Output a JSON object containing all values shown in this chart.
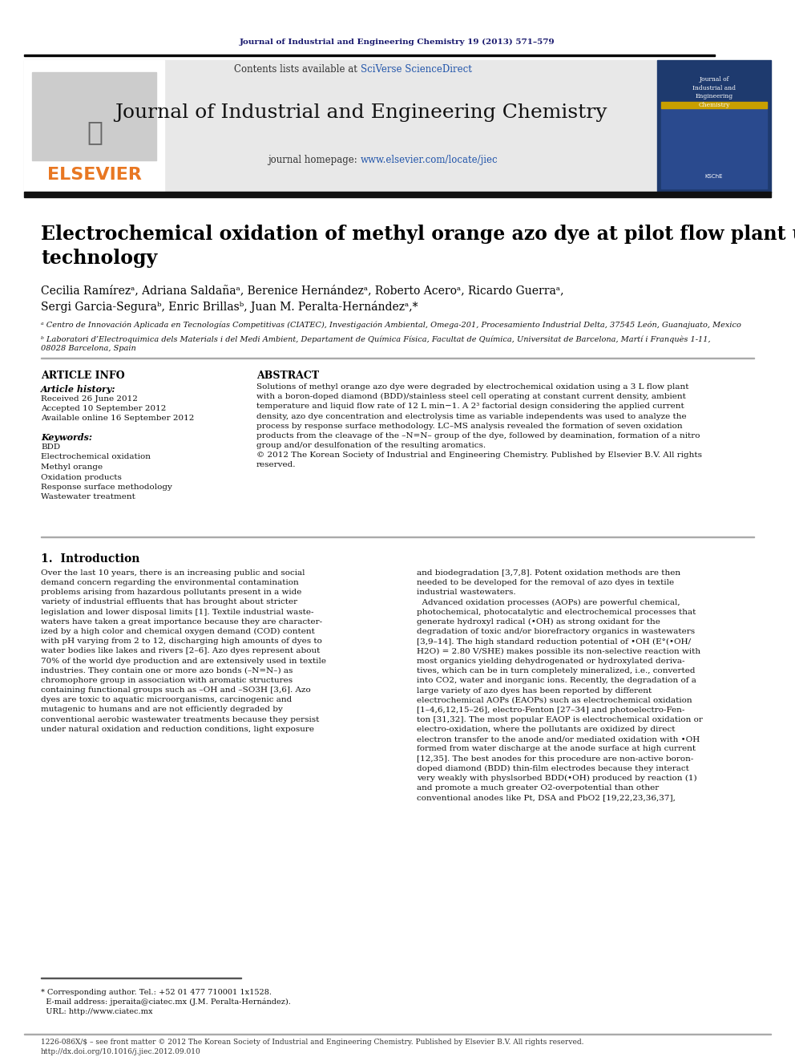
{
  "journal_ref": "Journal of Industrial and Engineering Chemistry 19 (2013) 571–579",
  "journal_name": "Journal of Industrial and Engineering Chemistry",
  "journal_homepage": "journal homepage: www.elsevier.com/locate/jiec",
  "contents_text": "Contents lists available at SciVerse ScienceDirect",
  "elsevier_text": "ELSEVIER",
  "paper_title": "Electrochemical oxidation of methyl orange azo dye at pilot flow plant using BDD\ntechnology",
  "authors": "Cecilia Ramírezᵃ, Adriana Saldañaᵃ, Berenice Hernándezᵃ, Roberto Aceroᵃ, Ricardo Guerraᵃ,\nSergi Garcia-Seguraᵇ, Enric Brillasᵇ, Juan M. Peralta-Hernándezᵃ,*",
  "affil_a": "ᵃ Centro de Innovación Aplicada en Tecnologías Competitivas (CIATEC), Investigación Ambiental, Omega-201, Procesamiento Industrial Delta, 37545 León, Guanajuato, Mexico",
  "affil_b": "ᵇ Laboratori d’Electroquimica dels Materials i del Medi Ambient, Departament de Química Física, Facultat de Química, Universitat de Barcelona, Martí i Franquès 1-11,\n08028 Barcelona, Spain",
  "article_info_header": "ARTICLE INFO",
  "abstract_header": "ABSTRACT",
  "article_history_label": "Article history:",
  "received": "Received 26 June 2012",
  "accepted": "Accepted 10 September 2012",
  "available": "Available online 16 September 2012",
  "keywords_label": "Keywords:",
  "keywords": "BDD\nElectrochemical oxidation\nMethyl orange\nOxidation products\nResponse surface methodology\nWastewater treatment",
  "abstract_text": "Solutions of methyl orange azo dye were degraded by electrochemical oxidation using a 3 L flow plant\nwith a boron-doped diamond (BDD)/stainless steel cell operating at constant current density, ambient\ntemperature and liquid flow rate of 12 L min−1. A 2³ factorial design considering the applied current\ndensity, azo dye concentration and electrolysis time as variable independents was used to analyze the\nprocess by response surface methodology. LC–MS analysis revealed the formation of seven oxidation\nproducts from the cleavage of the –N=N– group of the dye, followed by deamination, formation of a nitro\ngroup and/or desulfonation of the resulting aromatics.\n© 2012 The Korean Society of Industrial and Engineering Chemistry. Published by Elsevier B.V. All rights\nreserved.",
  "intro_header": "1.  Introduction",
  "intro_col1": "Over the last 10 years, there is an increasing public and social\ndemand concern regarding the environmental contamination\nproblems arising from hazardous pollutants present in a wide\nvariety of industrial effluents that has brought about stricter\nlegislation and lower disposal limits [1]. Textile industrial waste-\nwaters have taken a great importance because they are character-\nized by a high color and chemical oxygen demand (COD) content\nwith pH varying from 2 to 12, discharging high amounts of dyes to\nwater bodies like lakes and rivers [2–6]. Azo dyes represent about\n70% of the world dye production and are extensively used in textile\nindustries. They contain one or more azo bonds (–N=N–) as\nchromophore group in association with aromatic structures\ncontaining functional groups such as –OH and –SO3H [3,6]. Azo\ndyes are toxic to aquatic microorganisms, carcinogenic and\nmutagenic to humans and are not efficiently degraded by\nconventional aerobic wastewater treatments because they persist\nunder natural oxidation and reduction conditions, light exposure",
  "intro_col2": "and biodegradation [3,7,8]. Potent oxidation methods are then\nneeded to be developed for the removal of azo dyes in textile\nindustrial wastewaters.\n  Advanced oxidation processes (AOPs) are powerful chemical,\nphotochemical, photocatalytic and electrochemical processes that\ngenerate hydroxyl radical (•OH) as strong oxidant for the\ndegradation of toxic and/or biorefractory organics in wastewaters\n[3,9–14]. The high standard reduction potential of •OH (E°(•OH/\nH2O) = 2.80 V/SHE) makes possible its non-selective reaction with\nmost organics yielding dehydrogenated or hydroxylated deriva-\ntives, which can be in turn completely mineralized, i.e., converted\ninto CO2, water and inorganic ions. Recently, the degradation of a\nlarge variety of azo dyes has been reported by different\nelectrochemical AOPs (EAOPs) such as electrochemical oxidation\n[1–4,6,12,15–26], electro-Fenton [27–34] and photoelectro-Fen-\nton [31,32]. The most popular EAOP is electrochemical oxidation or\nelectro-oxidation, where the pollutants are oxidized by direct\nelectron transfer to the anode and/or mediated oxidation with •OH\nformed from water discharge at the anode surface at high current\n[12,35]. The best anodes for this procedure are non-active boron-\ndoped diamond (BDD) thin-film electrodes because they interact\nvery weakly with physlsorbed BDD(•OH) produced by reaction (1)\nand promote a much greater O2-overpotential than other\nconventional anodes like Pt, DSA and PbO2 [19,22,23,36,37],",
  "footnote_contact": "* Corresponding author. Tel.: +52 01 477 710001 1x1528.\n  E-mail address: jperaita@ciatec.mx (J.M. Peralta-Hernández).\n  URL: http://www.ciatec.mx",
  "footer_text": "1226-086X/$ – see front matter © 2012 The Korean Society of Industrial and Engineering Chemistry. Published by Elsevier B.V. All rights reserved.\nhttp://dx.doi.org/10.1016/j.jiec.2012.09.010",
  "bg_color": "#ffffff",
  "text_color": "#000000",
  "header_blue": "#1a1a6e",
  "link_color": "#2255aa",
  "elsevier_orange": "#e87722",
  "header_bg": "#e8e8e8",
  "dark_bar": "#1a1a1a",
  "sidebar_blue": "#1e3a6e"
}
